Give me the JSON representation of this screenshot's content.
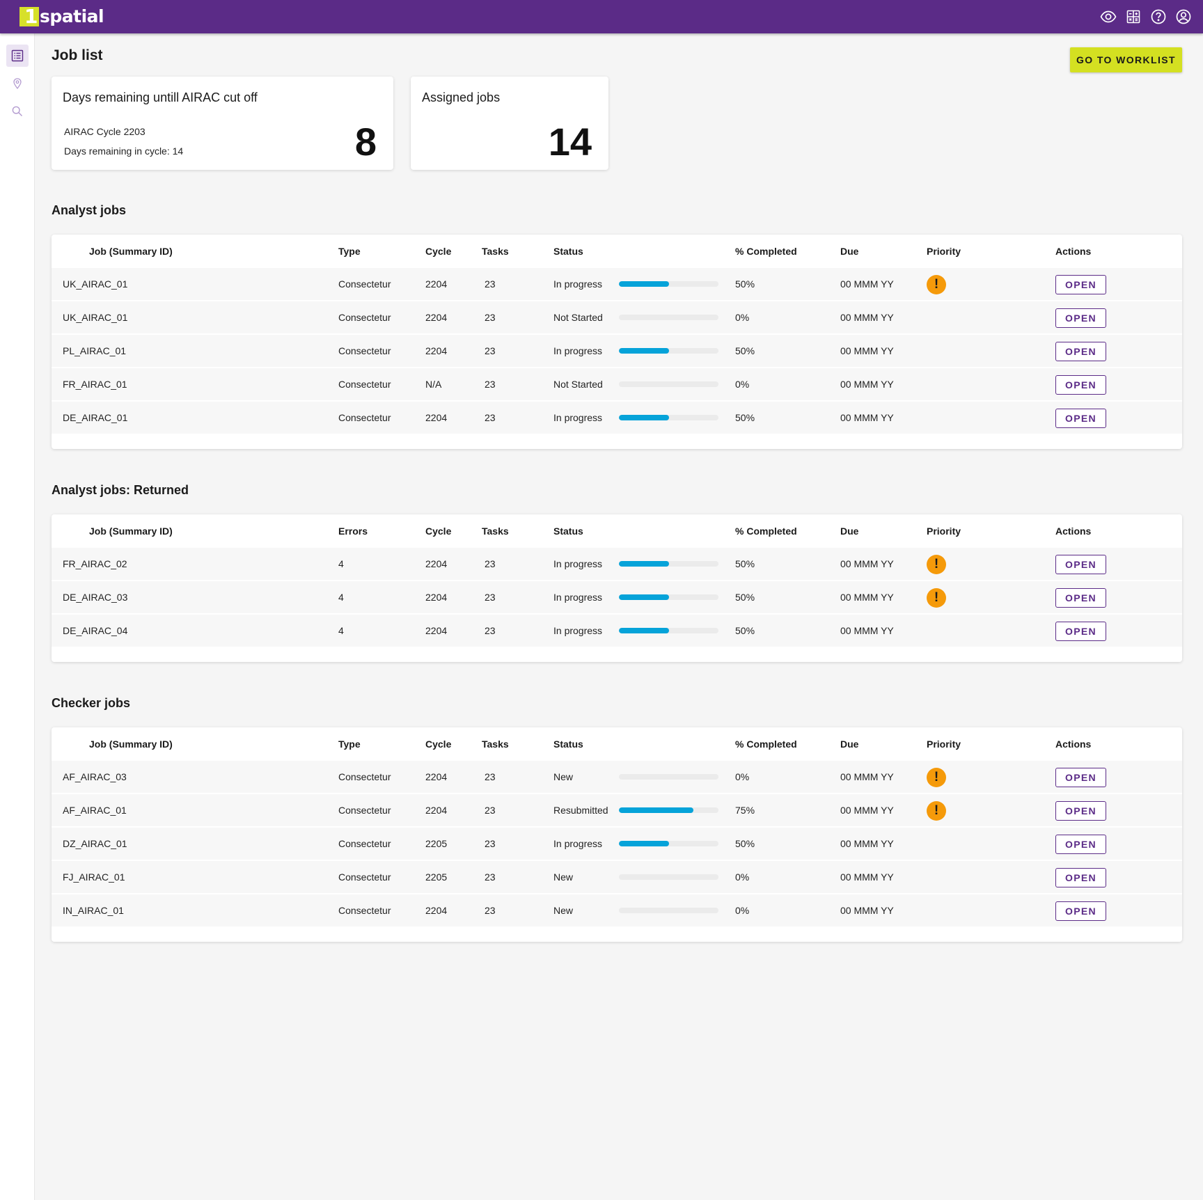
{
  "app": {
    "logo_text": "spatial",
    "logo_mark": "1"
  },
  "topbar_icons": [
    "eye-icon",
    "calculator-icon",
    "help-icon",
    "account-icon"
  ],
  "sidebar_icons": [
    "list-icon",
    "map-pin-icon",
    "search-icon"
  ],
  "page_title": "Job list",
  "worklist_button": "GO TO WORKLIST",
  "airac_card": {
    "title": "Days remaining untill AIRAC cut off",
    "cycle_line": "AIRAC Cycle 2203",
    "remaining_line": "Days remaining in cycle: 14",
    "value": "8"
  },
  "assigned_card": {
    "title": "Assigned jobs",
    "value": "14"
  },
  "colors": {
    "header": "#5b2b87",
    "accent": "#d4e021",
    "progress": "#06a3d9",
    "priority": "#f59a0a"
  },
  "open_label": "OPEN",
  "priority_glyph": "!",
  "analyst": {
    "title": "Analyst jobs",
    "headers": {
      "job": "Job (Summary ID)",
      "type": "Type",
      "cycle": "Cycle",
      "tasks": "Tasks",
      "status": "Status",
      "pct": "% Completed",
      "due": "Due",
      "priority": "Priority",
      "actions": "Actions"
    },
    "rows": [
      {
        "job": "UK_AIRAC_01",
        "type": "Consectetur",
        "cycle": "2204",
        "tasks": "23",
        "status": "In progress",
        "pct": "50%",
        "progress": 0.5,
        "due": "00 MMM YY",
        "priority": true
      },
      {
        "job": "UK_AIRAC_01",
        "type": "Consectetur",
        "cycle": "2204",
        "tasks": "23",
        "status": "Not Started",
        "pct": "0%",
        "progress": 0,
        "due": "00 MMM YY",
        "priority": false
      },
      {
        "job": "PL_AIRAC_01",
        "type": "Consectetur",
        "cycle": "2204",
        "tasks": "23",
        "status": "In progress",
        "pct": "50%",
        "progress": 0.5,
        "due": "00 MMM YY",
        "priority": false
      },
      {
        "job": "FR_AIRAC_01",
        "type": "Consectetur",
        "cycle": "N/A",
        "tasks": "23",
        "status": "Not Started",
        "pct": "0%",
        "progress": 0,
        "due": "00 MMM YY",
        "priority": false
      },
      {
        "job": "DE_AIRAC_01",
        "type": "Consectetur",
        "cycle": "2204",
        "tasks": "23",
        "status": "In progress",
        "pct": "50%",
        "progress": 0.5,
        "due": "00 MMM YY",
        "priority": false
      }
    ]
  },
  "returned": {
    "title": "Analyst jobs: Returned",
    "headers": {
      "job": "Job (Summary ID)",
      "type": "Errors",
      "cycle": "Cycle",
      "tasks": "Tasks",
      "status": "Status",
      "pct": "% Completed",
      "due": "Due",
      "priority": "Priority",
      "actions": "Actions"
    },
    "rows": [
      {
        "job": "FR_AIRAC_02",
        "type": "4",
        "cycle": "2204",
        "tasks": "23",
        "status": "In progress",
        "pct": "50%",
        "progress": 0.5,
        "due": "00 MMM YY",
        "priority": true
      },
      {
        "job": "DE_AIRAC_03",
        "type": "4",
        "cycle": "2204",
        "tasks": "23",
        "status": "In progress",
        "pct": "50%",
        "progress": 0.5,
        "due": "00 MMM YY",
        "priority": true
      },
      {
        "job": "DE_AIRAC_04",
        "type": "4",
        "cycle": "2204",
        "tasks": "23",
        "status": "In progress",
        "pct": "50%",
        "progress": 0.5,
        "due": "00 MMM YY",
        "priority": false
      }
    ]
  },
  "checker": {
    "title": "Checker jobs",
    "headers": {
      "job": "Job (Summary ID)",
      "type": "Type",
      "cycle": "Cycle",
      "tasks": "Tasks",
      "status": "Status",
      "pct": "% Completed",
      "due": "Due",
      "priority": "Priority",
      "actions": "Actions"
    },
    "rows": [
      {
        "job": "AF_AIRAC_03",
        "type": "Consectetur",
        "cycle": "2204",
        "tasks": "23",
        "status": "New",
        "pct": "0%",
        "progress": 0,
        "due": "00 MMM YY",
        "priority": true
      },
      {
        "job": "AF_AIRAC_01",
        "type": "Consectetur",
        "cycle": "2204",
        "tasks": "23",
        "status": "Resubmitted",
        "pct": "75%",
        "progress": 0.75,
        "due": "00 MMM YY",
        "priority": true
      },
      {
        "job": "DZ_AIRAC_01",
        "type": "Consectetur",
        "cycle": "2205",
        "tasks": "23",
        "status": "In progress",
        "pct": "50%",
        "progress": 0.5,
        "due": "00 MMM YY",
        "priority": false
      },
      {
        "job": "FJ_AIRAC_01",
        "type": "Consectetur",
        "cycle": "2205",
        "tasks": "23",
        "status": "New",
        "pct": "0%",
        "progress": 0,
        "due": "00 MMM YY",
        "priority": false
      },
      {
        "job": "IN_AIRAC_01",
        "type": "Consectetur",
        "cycle": "2204",
        "tasks": "23",
        "status": "New",
        "pct": "0%",
        "progress": 0,
        "due": "00 MMM YY",
        "priority": false
      }
    ]
  }
}
